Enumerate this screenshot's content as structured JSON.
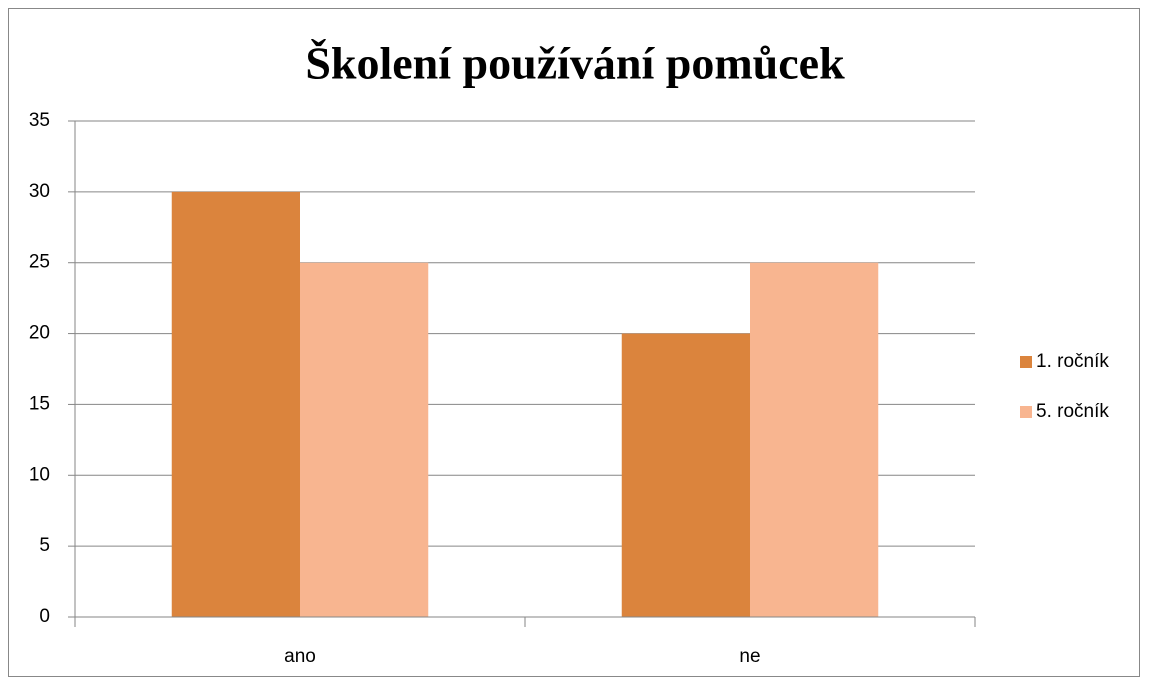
{
  "chart_data": {
    "type": "bar",
    "title": "Školení používání pomůcek",
    "categories": [
      "ano",
      "ne"
    ],
    "series": [
      {
        "name": "1. ročník",
        "color": "#db843d",
        "values": [
          30,
          20
        ]
      },
      {
        "name": "5. ročník",
        "color": "#f8b590",
        "values": [
          25,
          25
        ]
      }
    ],
    "ylim": [
      0,
      35
    ],
    "yticks": [
      0,
      5,
      10,
      15,
      20,
      25,
      30,
      35
    ],
    "grid": true,
    "legend": "right"
  }
}
